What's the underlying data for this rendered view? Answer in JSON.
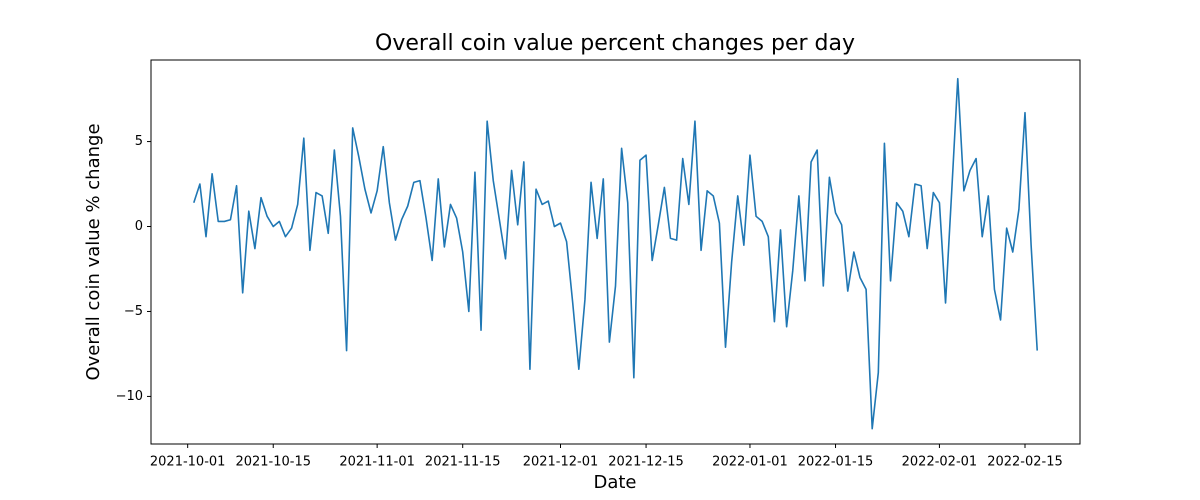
{
  "chart_data": {
    "type": "line",
    "title": "Overall coin value percent changes per day",
    "xlabel": "Date",
    "ylabel": "Overall coin value % change",
    "color": "#1f77b4",
    "x": [
      "2021-10-02",
      "2021-10-03",
      "2021-10-04",
      "2021-10-05",
      "2021-10-06",
      "2021-10-07",
      "2021-10-08",
      "2021-10-09",
      "2021-10-10",
      "2021-10-11",
      "2021-10-12",
      "2021-10-13",
      "2021-10-14",
      "2021-10-15",
      "2021-10-16",
      "2021-10-17",
      "2021-10-18",
      "2021-10-19",
      "2021-10-20",
      "2021-10-21",
      "2021-10-22",
      "2021-10-23",
      "2021-10-24",
      "2021-10-25",
      "2021-10-26",
      "2021-10-27",
      "2021-10-28",
      "2021-10-29",
      "2021-10-30",
      "2021-10-31",
      "2021-11-01",
      "2021-11-02",
      "2021-11-03",
      "2021-11-04",
      "2021-11-05",
      "2021-11-06",
      "2021-11-07",
      "2021-11-08",
      "2021-11-09",
      "2021-11-10",
      "2021-11-11",
      "2021-11-12",
      "2021-11-13",
      "2021-11-14",
      "2021-11-15",
      "2021-11-16",
      "2021-11-17",
      "2021-11-18",
      "2021-11-19",
      "2021-11-20",
      "2021-11-21",
      "2021-11-22",
      "2021-11-23",
      "2021-11-24",
      "2021-11-25",
      "2021-11-26",
      "2021-11-27",
      "2021-11-28",
      "2021-11-29",
      "2021-11-30",
      "2021-12-01",
      "2021-12-02",
      "2021-12-03",
      "2021-12-04",
      "2021-12-05",
      "2021-12-06",
      "2021-12-07",
      "2021-12-08",
      "2021-12-09",
      "2021-12-10",
      "2021-12-11",
      "2021-12-12",
      "2021-12-13",
      "2021-12-14",
      "2021-12-15",
      "2021-12-16",
      "2021-12-17",
      "2021-12-18",
      "2021-12-19",
      "2021-12-20",
      "2021-12-21",
      "2021-12-22",
      "2021-12-23",
      "2021-12-24",
      "2021-12-25",
      "2021-12-26",
      "2021-12-27",
      "2021-12-28",
      "2021-12-29",
      "2021-12-30",
      "2021-12-31",
      "2022-01-01",
      "2022-01-02",
      "2022-01-03",
      "2022-01-04",
      "2022-01-05",
      "2022-01-06",
      "2022-01-07",
      "2022-01-08",
      "2022-01-09",
      "2022-01-10",
      "2022-01-11",
      "2022-01-12",
      "2022-01-13",
      "2022-01-14",
      "2022-01-15",
      "2022-01-16",
      "2022-01-17",
      "2022-01-18",
      "2022-01-19",
      "2022-01-20",
      "2022-01-21",
      "2022-01-22",
      "2022-01-23",
      "2022-01-24",
      "2022-01-25",
      "2022-01-26",
      "2022-01-27",
      "2022-01-28",
      "2022-01-29",
      "2022-01-30",
      "2022-01-31",
      "2022-02-01",
      "2022-02-02",
      "2022-02-03",
      "2022-02-04",
      "2022-02-05",
      "2022-02-06",
      "2022-02-07",
      "2022-02-08",
      "2022-02-09",
      "2022-02-10",
      "2022-02-11",
      "2022-02-12",
      "2022-02-13",
      "2022-02-14",
      "2022-02-15",
      "2022-02-16",
      "2022-02-17"
    ],
    "values": [
      1.4,
      2.5,
      -0.6,
      3.1,
      0.3,
      0.3,
      0.4,
      2.4,
      -3.9,
      0.9,
      -1.3,
      1.7,
      0.6,
      0.0,
      0.3,
      -0.6,
      -0.1,
      1.3,
      5.2,
      -1.4,
      2.0,
      1.8,
      -0.4,
      4.5,
      0.6,
      -7.3,
      5.8,
      4.1,
      2.2,
      0.8,
      2.1,
      4.7,
      1.4,
      -0.8,
      0.4,
      1.2,
      2.6,
      2.7,
      0.5,
      -2.0,
      2.8,
      -1.2,
      1.3,
      0.5,
      -1.5,
      -5.0,
      3.2,
      -6.1,
      6.2,
      2.7,
      0.4,
      -1.9,
      3.3,
      0.1,
      3.8,
      -8.4,
      2.2,
      1.3,
      1.5,
      0.0,
      0.2,
      -0.9,
      -4.5,
      -8.4,
      -4.3,
      2.6,
      -0.7,
      2.8,
      -6.8,
      -3.5,
      4.6,
      1.4,
      -8.9,
      3.9,
      4.2,
      -2.0,
      0.1,
      2.3,
      -0.7,
      -0.8,
      4.0,
      1.3,
      6.2,
      -1.4,
      2.1,
      1.8,
      0.2,
      -7.1,
      -2.1,
      1.8,
      -1.1,
      4.2,
      0.6,
      0.3,
      -0.6,
      -5.6,
      -0.2,
      -5.9,
      -2.6,
      1.8,
      -3.2,
      3.8,
      4.5,
      -3.5,
      2.9,
      0.8,
      0.1,
      -3.8,
      -1.5,
      -3.0,
      -3.7,
      -11.9,
      -8.6,
      4.9,
      -3.2,
      1.4,
      0.9,
      -0.6,
      2.5,
      2.4,
      -1.3,
      2.0,
      1.4,
      -4.5,
      2.0,
      8.7,
      2.1,
      3.3,
      4.0,
      -0.6,
      1.8,
      -3.7,
      -5.5,
      -0.1,
      -1.5,
      1.0,
      6.7,
      -1.1,
      -7.3
    ],
    "xlim": [
      "2021-09-25",
      "2022-02-24"
    ],
    "xticks": [
      "2021-10-01",
      "2021-10-15",
      "2021-11-01",
      "2021-11-15",
      "2021-12-01",
      "2021-12-15",
      "2022-01-01",
      "2022-01-15",
      "2022-02-01",
      "2022-02-15"
    ],
    "ylim": [
      -12.8,
      9.8
    ],
    "yticks": [
      {
        "value": -10,
        "label": "−10"
      },
      {
        "value": -5,
        "label": "−5"
      },
      0,
      5
    ],
    "grid": false
  }
}
